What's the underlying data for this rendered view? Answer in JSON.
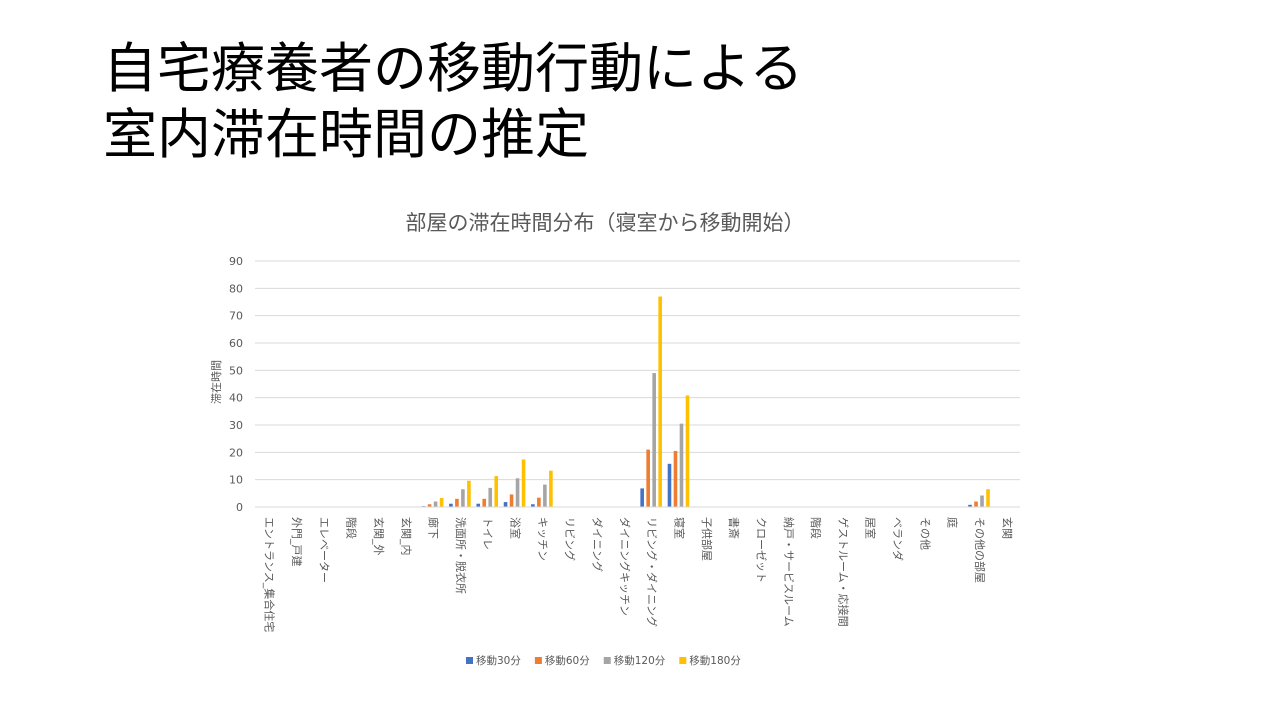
{
  "slide": {
    "title_line1": "自宅療養者の移動行動による",
    "title_line2": "室内滞在時間の推定"
  },
  "chart_data": {
    "type": "bar",
    "title": "部屋の滞在時間分布（寝室から移動開始）",
    "xlabel": "",
    "ylabel": "滞在時間",
    "ylim": [
      0,
      90
    ],
    "yticks": [
      0,
      10,
      20,
      30,
      40,
      50,
      60,
      70,
      80,
      90
    ],
    "grid": true,
    "legend_position": "bottom",
    "categories": [
      "エントランス_集合住宅",
      "外門_戸建",
      "エレベーター",
      "階段",
      "玄関_外",
      "玄関_内",
      "廊下",
      "洗面所・脱衣所",
      "トイレ",
      "浴室",
      "キッチン",
      "リビング",
      "ダイニング",
      "ダイニングキッチン",
      "リビング・ダイニング",
      "寝室",
      "子供部屋",
      "書斎",
      "クローゼット",
      "納戸・サービスルーム",
      "階段",
      "ゲストルーム・応接間",
      "居室",
      "ベランダ",
      "その他",
      "庭",
      "その他の部屋",
      "玄関"
    ],
    "series": [
      {
        "name": "移動30分",
        "color": "#4472C4",
        "values": [
          0,
          0,
          0,
          0,
          0,
          0,
          0.3,
          1.2,
          1.2,
          1.8,
          1.0,
          0,
          0,
          0,
          6.8,
          15.8,
          0,
          0,
          0,
          0,
          0,
          0,
          0,
          0,
          0,
          0,
          0.8,
          0
        ]
      },
      {
        "name": "移動60分",
        "color": "#ED7D31",
        "values": [
          0,
          0,
          0,
          0,
          0,
          0,
          1.0,
          3.0,
          3.0,
          4.6,
          3.4,
          0,
          0,
          0,
          21.0,
          20.5,
          0,
          0,
          0,
          0,
          0,
          0,
          0,
          0,
          0,
          0,
          2.0,
          0
        ]
      },
      {
        "name": "移動120分",
        "color": "#A5A5A5",
        "values": [
          0,
          0,
          0,
          0,
          0,
          0,
          2.0,
          6.5,
          7.0,
          10.5,
          8.2,
          0,
          0,
          0,
          49.0,
          30.5,
          0,
          0,
          0,
          0,
          0,
          0,
          0,
          0,
          0,
          0,
          4.2,
          0
        ]
      },
      {
        "name": "移動180分",
        "color": "#FFC000",
        "values": [
          0,
          0,
          0,
          0,
          0,
          0,
          3.3,
          9.6,
          11.3,
          17.4,
          13.3,
          0,
          0,
          0,
          77.0,
          40.8,
          0,
          0,
          0,
          0,
          0,
          0,
          0,
          0,
          0,
          0,
          6.5,
          0
        ]
      }
    ]
  }
}
